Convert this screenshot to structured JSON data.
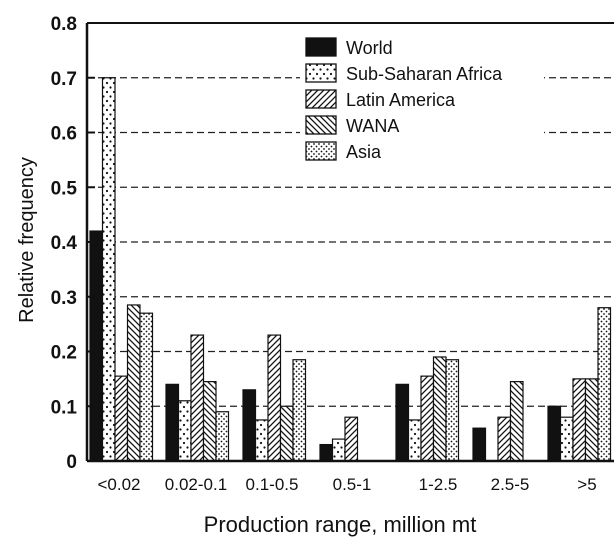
{
  "chart_data": {
    "type": "bar",
    "xlabel": "Production range, million mt",
    "ylabel": "Relative frequency",
    "ylim": [
      0,
      0.8
    ],
    "yticks": [
      "0",
      "0.1",
      "0.2",
      "0.3",
      "0.4",
      "0.5",
      "0.6",
      "0.7",
      "0.8"
    ],
    "categories": [
      "<0.02",
      "0.02-0.1",
      "0.1-0.5",
      "0.5-1",
      "1-2.5",
      "2.5-5",
      ">5"
    ],
    "grid": "horizontal dashed",
    "legend_position": "top-center",
    "series": [
      {
        "name": "World",
        "pattern": "solid",
        "color": "#111111",
        "values": [
          0.42,
          0.14,
          0.13,
          0.03,
          0.14,
          0.06,
          0.1
        ]
      },
      {
        "name": "Sub-Saharan Africa",
        "pattern": "sparse-dots",
        "color": "#111111",
        "values": [
          0.7,
          0.11,
          0.075,
          0.04,
          0.075,
          null,
          0.08
        ]
      },
      {
        "name": "Latin America",
        "pattern": "diagonal-right",
        "color": "#111111",
        "values": [
          0.155,
          0.23,
          0.23,
          0.08,
          0.155,
          0.08,
          0.15
        ]
      },
      {
        "name": "WANA",
        "pattern": "diagonal-left",
        "color": "#111111",
        "values": [
          0.285,
          0.145,
          0.1,
          null,
          0.19,
          0.145,
          0.15
        ]
      },
      {
        "name": "Asia",
        "pattern": "dots",
        "color": "#111111",
        "values": [
          0.27,
          0.09,
          0.185,
          null,
          0.185,
          null,
          0.28
        ]
      }
    ]
  }
}
